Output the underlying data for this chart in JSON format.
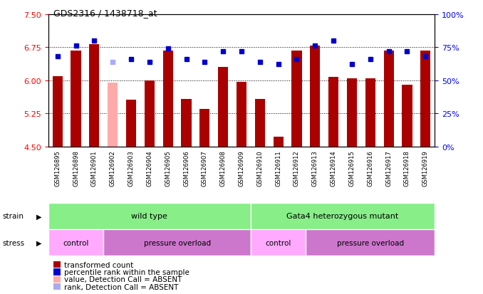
{
  "title": "GDS2316 / 1438718_at",
  "samples": [
    "GSM126895",
    "GSM126898",
    "GSM126901",
    "GSM126902",
    "GSM126903",
    "GSM126904",
    "GSM126905",
    "GSM126906",
    "GSM126907",
    "GSM126908",
    "GSM126909",
    "GSM126910",
    "GSM126911",
    "GSM126912",
    "GSM126913",
    "GSM126914",
    "GSM126915",
    "GSM126916",
    "GSM126917",
    "GSM126918",
    "GSM126919"
  ],
  "bar_values": [
    6.1,
    6.68,
    6.82,
    5.95,
    5.57,
    6.0,
    6.68,
    5.58,
    5.35,
    6.3,
    5.97,
    5.58,
    4.72,
    6.68,
    6.78,
    6.08,
    6.04,
    6.04,
    6.68,
    5.9,
    6.68
  ],
  "bar_absent": [
    false,
    false,
    false,
    true,
    false,
    false,
    false,
    false,
    false,
    false,
    false,
    false,
    false,
    false,
    false,
    false,
    false,
    false,
    false,
    false,
    false
  ],
  "percentile_values": [
    68,
    76,
    80,
    64,
    66,
    64,
    74,
    66,
    64,
    72,
    72,
    64,
    62,
    66,
    76,
    80,
    62,
    66,
    72,
    72,
    68
  ],
  "percentile_absent": [
    false,
    false,
    false,
    true,
    false,
    false,
    false,
    false,
    false,
    false,
    false,
    false,
    false,
    false,
    false,
    false,
    false,
    false,
    false,
    false,
    false
  ],
  "ylim_left": [
    4.5,
    7.5
  ],
  "ylim_right": [
    0,
    100
  ],
  "yticks_left": [
    4.5,
    5.25,
    6.0,
    6.75,
    7.5
  ],
  "yticks_right": [
    0,
    25,
    50,
    75,
    100
  ],
  "grid_lines": [
    5.25,
    6.0,
    6.75
  ],
  "bar_color": "#aa0000",
  "bar_absent_color": "#ffaaaa",
  "dot_color": "#0000cc",
  "dot_absent_color": "#aaaaff",
  "bg_color": "#cccccc",
  "plot_bg": "#ffffff",
  "strain_wt_color": "#88ee88",
  "strain_gata_color": "#88ee88",
  "stress_control_color": "#ffaaff",
  "stress_overload_color": "#cc77cc",
  "legend_items": [
    {
      "label": "transformed count",
      "color": "#aa0000"
    },
    {
      "label": "percentile rank within the sample",
      "color": "#0000cc"
    },
    {
      "label": "value, Detection Call = ABSENT",
      "color": "#ffaaaa"
    },
    {
      "label": "rank, Detection Call = ABSENT",
      "color": "#aaaaee"
    }
  ]
}
